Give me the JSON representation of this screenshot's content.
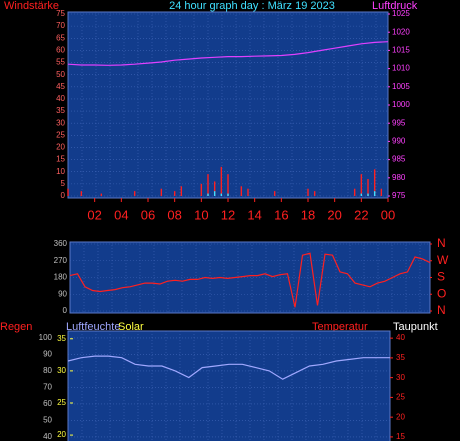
{
  "chart_data": [
    {
      "type": "combo",
      "title": "24 hour graph day : März 19 2023",
      "ylabel": "Windstärke",
      "y2label": "Luftdruck",
      "xlim": [
        0,
        24
      ],
      "xticks": [
        {
          "value": 2,
          "label": "02"
        },
        {
          "value": 4,
          "label": "04"
        },
        {
          "value": 6,
          "label": "06"
        },
        {
          "value": 8,
          "label": "08"
        },
        10,
        12,
        14,
        16,
        18,
        20,
        22,
        {
          "value": 24,
          "label": "00"
        }
      ],
      "ylim": [
        0,
        75
      ],
      "yticks": [
        0,
        5,
        10,
        15,
        20,
        25,
        30,
        35,
        40,
        45,
        50,
        55,
        60,
        65,
        70,
        75
      ],
      "y2lim": [
        975,
        1025
      ],
      "y2ticks": [
        975,
        980,
        985,
        990,
        995,
        1000,
        1005,
        1010,
        1015,
        1020,
        1025
      ],
      "grid": true,
      "series": [
        {
          "kind": "bar",
          "color": "#ff2020",
          "x": [
            0,
            0.5,
            1,
            1.5,
            2,
            2.5,
            3,
            3.5,
            4,
            4.5,
            5,
            5.5,
            6,
            6.5,
            7,
            7.5,
            8,
            8.5,
            9,
            9.5,
            10,
            10.5,
            11,
            11.5,
            12,
            12.5,
            13,
            13.5,
            14,
            14.5,
            15,
            15.5,
            16,
            16.5,
            17,
            17.5,
            18,
            18.5,
            19,
            19.5,
            20,
            20.5,
            21,
            21.5,
            22,
            22.5,
            23,
            23.5
          ],
          "values": [
            3,
            0,
            2,
            0,
            0,
            1,
            0,
            0,
            0,
            0,
            2,
            0,
            0,
            0,
            3,
            0,
            2,
            4,
            0,
            0,
            5,
            9,
            6,
            12,
            9,
            0,
            4,
            3,
            0,
            0,
            0,
            2,
            0,
            0,
            0,
            0,
            3,
            2,
            0,
            0,
            0,
            0,
            0,
            3,
            9,
            7,
            11,
            3
          ]
        },
        {
          "kind": "bar",
          "color": "#40e0ff",
          "x": [
            10.5,
            11,
            11.5,
            12,
            22,
            22.5,
            23
          ],
          "values": [
            1,
            2,
            1,
            1,
            1,
            1,
            2
          ]
        },
        {
          "kind": "line",
          "axis": "y2",
          "color": "#e040ff",
          "x": [
            0,
            1,
            2,
            3,
            4,
            5,
            6,
            7,
            8,
            9,
            10,
            11,
            12,
            13,
            14,
            15,
            16,
            17,
            18,
            19,
            20,
            21,
            22,
            23,
            24
          ],
          "values": [
            1011.2,
            1011,
            1011,
            1010.9,
            1011,
            1011.2,
            1011.5,
            1011.8,
            1012.3,
            1012.6,
            1012.9,
            1013.1,
            1013.3,
            1013.3,
            1013.4,
            1013.5,
            1013.6,
            1013.9,
            1014.4,
            1015,
            1015.6,
            1016.2,
            1016.8,
            1017.2,
            1017.4
          ]
        }
      ]
    },
    {
      "type": "combo",
      "xlim": [
        0,
        24
      ],
      "ylim": [
        0,
        360
      ],
      "yticks": [
        0,
        90,
        180,
        270,
        360
      ],
      "y2lim": [
        0,
        360
      ],
      "y2ticks": [
        {
          "value": 360,
          "label": "N"
        },
        {
          "value": 270,
          "label": "W"
        },
        {
          "value": 180,
          "label": "S"
        },
        {
          "value": 90,
          "label": "O"
        },
        {
          "value": 0,
          "label": "N"
        }
      ],
      "grid": true,
      "series": [
        {
          "kind": "line",
          "color": "#ff2020",
          "x": [
            0,
            0.5,
            1,
            1.5,
            2,
            2.5,
            3,
            3.5,
            4,
            4.5,
            5,
            5.5,
            6,
            6.5,
            7,
            7.5,
            8,
            8.5,
            9,
            9.5,
            10,
            10.5,
            11,
            11.5,
            12,
            12.5,
            13,
            13.5,
            14,
            14.5,
            15,
            15.5,
            16,
            16.5,
            17,
            17.5,
            18,
            18.5,
            19,
            19.5,
            20,
            20.5,
            21,
            21.5,
            22,
            22.5,
            23,
            23.5,
            24
          ],
          "values": [
            190,
            200,
            130,
            110,
            105,
            110,
            115,
            125,
            130,
            140,
            150,
            150,
            145,
            160,
            165,
            160,
            170,
            170,
            180,
            175,
            180,
            175,
            180,
            185,
            190,
            190,
            200,
            185,
            195,
            200,
            20,
            300,
            310,
            30,
            305,
            300,
            210,
            200,
            150,
            140,
            130,
            150,
            160,
            180,
            200,
            210,
            290,
            280,
            260
          ]
        }
      ]
    },
    {
      "type": "combo",
      "labels": [
        "Regen",
        "Luftfeuchte",
        "Solar",
        "Temperatur",
        "Taupunkt"
      ],
      "xlim": [
        0,
        24
      ],
      "ylim": [
        34.5,
        103
      ],
      "yticks": [
        40,
        50,
        60,
        70,
        80,
        90,
        100
      ],
      "y2lim": [
        18.3,
        35.9
      ],
      "y2ticks": [
        20,
        25,
        30,
        35
      ],
      "y3lim": [
        12.7,
        41.3
      ],
      "y3ticks": [
        15,
        20,
        25,
        30,
        35,
        40
      ],
      "grid": true,
      "series": [
        {
          "kind": "line",
          "color": "#a0a8ff",
          "x": [
            0,
            1,
            2,
            3,
            4,
            5,
            6,
            7,
            8,
            9,
            10,
            11,
            12,
            13,
            14,
            15,
            16,
            17,
            18,
            19,
            20,
            21,
            22,
            23,
            24
          ],
          "values": [
            86,
            88,
            89,
            89,
            88,
            84,
            83,
            83,
            80,
            76,
            82,
            83,
            84,
            84,
            82,
            80,
            75,
            79,
            83,
            84,
            86,
            87,
            88,
            88,
            88
          ]
        }
      ]
    }
  ]
}
